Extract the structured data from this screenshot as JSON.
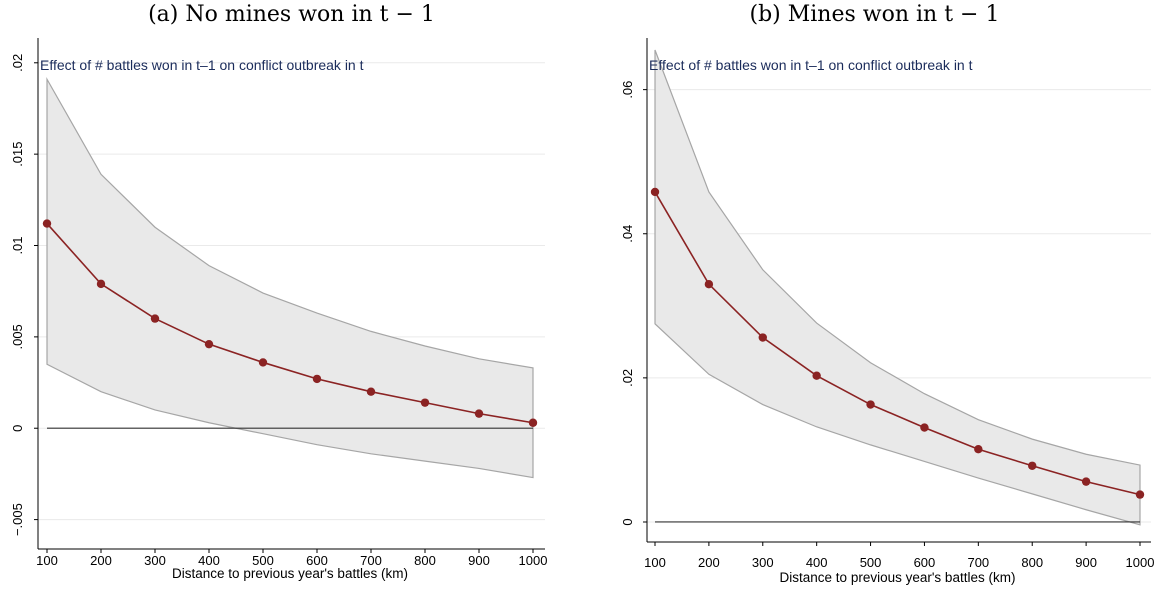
{
  "panels": [
    {
      "title": "(a) No mines won in t − 1"
    },
    {
      "title": "(b) Mines won in t − 1"
    }
  ],
  "chart_data": [
    {
      "type": "line",
      "title": "(a) No mines won in t − 1",
      "annotation": "Effect of # battles won in t–1 on conflict outbreak in t",
      "xlabel": "Distance to previous year's battles (km)",
      "ylabel": "",
      "x": [
        100,
        200,
        300,
        400,
        500,
        600,
        700,
        800,
        900,
        1000
      ],
      "xticks": [
        100,
        200,
        300,
        400,
        500,
        600,
        700,
        800,
        900,
        1000
      ],
      "yticks": [
        -0.005,
        0,
        0.005,
        0.01,
        0.015,
        0.02
      ],
      "ytick_labels": [
        "−.005",
        "0",
        ".005",
        ".01",
        ".015",
        ".02"
      ],
      "xlim": [
        100,
        1000
      ],
      "ylim": [
        -0.0065,
        0.0207
      ],
      "grid": true,
      "reference_line": 0,
      "series": [
        {
          "role": "estimate",
          "values": [
            0.0112,
            0.0079,
            0.006,
            0.0046,
            0.0036,
            0.0027,
            0.002,
            0.0014,
            0.0008,
            0.0003
          ]
        },
        {
          "role": "ci_upper",
          "values": [
            0.0191,
            0.0139,
            0.011,
            0.0089,
            0.0074,
            0.0063,
            0.0053,
            0.0045,
            0.0038,
            0.0033
          ]
        },
        {
          "role": "ci_lower",
          "values": [
            0.0035,
            0.002,
            0.001,
            0.0003,
            -0.0003,
            -0.0009,
            -0.0014,
            -0.0018,
            -0.0022,
            -0.0027
          ]
        }
      ],
      "colors": {
        "line": "#8b2323",
        "band": "#e9e9e9",
        "band_edge": "#a6a6a6"
      }
    },
    {
      "type": "line",
      "title": "(b) Mines won in t − 1",
      "annotation": "Effect of # battles won in t–1 on conflict outbreak in t",
      "xlabel": "Distance to previous year's battles (km)",
      "ylabel": "",
      "x": [
        100,
        200,
        300,
        400,
        500,
        600,
        700,
        800,
        900,
        1000
      ],
      "xticks": [
        100,
        200,
        300,
        400,
        500,
        600,
        700,
        800,
        900,
        1000
      ],
      "yticks": [
        0,
        0.02,
        0.04,
        0.06
      ],
      "ytick_labels": [
        "0",
        ".02",
        ".04",
        ".06"
      ],
      "xlim": [
        100,
        1000
      ],
      "ylim": [
        -0.0025,
        0.0655
      ],
      "grid": true,
      "reference_line": 0,
      "series": [
        {
          "role": "estimate",
          "values": [
            0.0458,
            0.033,
            0.0256,
            0.0203,
            0.0163,
            0.0131,
            0.0101,
            0.0078,
            0.0056,
            0.0038
          ]
        },
        {
          "role": "ci_upper",
          "values": [
            0.0655,
            0.0458,
            0.035,
            0.0276,
            0.0221,
            0.0178,
            0.0142,
            0.0115,
            0.0094,
            0.0079
          ]
        },
        {
          "role": "ci_lower",
          "values": [
            0.0275,
            0.0205,
            0.0163,
            0.0132,
            0.0107,
            0.0084,
            0.0061,
            0.0039,
            0.0017,
            -0.0004
          ]
        }
      ],
      "colors": {
        "line": "#8b2323",
        "band": "#e9e9e9",
        "band_edge": "#a6a6a6"
      }
    }
  ]
}
